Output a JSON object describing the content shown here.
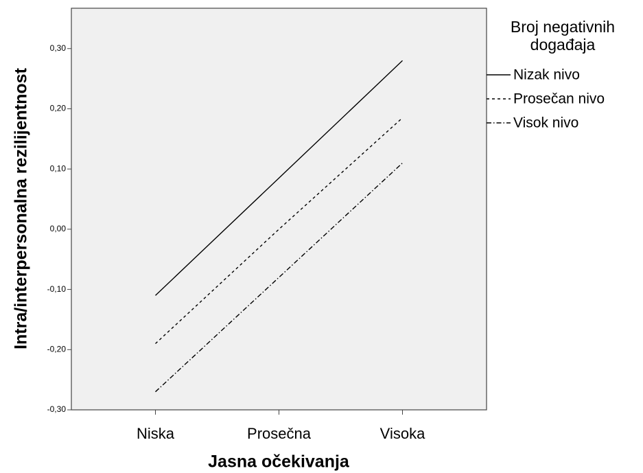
{
  "chart_data": {
    "type": "line",
    "xlabel": "Jasna očekivanja",
    "ylabel": "Intra/interpersonalna rezilijentnost",
    "categories": [
      "Niska",
      "Prosečna",
      "Visoka"
    ],
    "series": [
      {
        "name": "Nizak nivo",
        "color": "#000000",
        "dash": "solid",
        "values": [
          -0.11,
          0.085,
          0.28
        ]
      },
      {
        "name": "Prosečan nivo",
        "color": "#000000",
        "dash": "dashed",
        "values": [
          -0.19,
          0.0,
          0.185
        ]
      },
      {
        "name": "Visok nivo",
        "color": "#000000",
        "dash": "dashdot",
        "values": [
          -0.27,
          -0.08,
          0.11
        ]
      }
    ],
    "legend_title": "Broj negativnih događaja",
    "ylim": [
      -0.3,
      0.367
    ],
    "yticks": [
      {
        "value": -0.3,
        "label": "-0,30"
      },
      {
        "value": -0.2,
        "label": "-0,20"
      },
      {
        "value": -0.1,
        "label": "-0,10"
      },
      {
        "value": 0,
        "label": "0,00"
      },
      {
        "value": 0.1,
        "label": "0,10"
      },
      {
        "value": 0.2,
        "label": "0,20"
      },
      {
        "value": 0.3,
        "label": "0,30"
      }
    ],
    "legend_position": "right"
  }
}
